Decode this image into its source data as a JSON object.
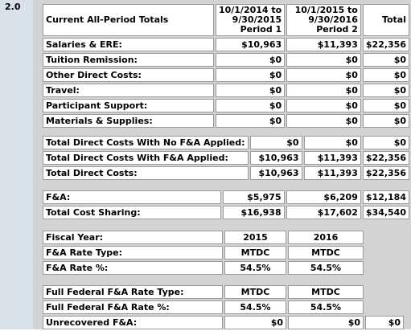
{
  "section_number": "2.0",
  "header": {
    "title": "Current All-Period Totals",
    "period1": [
      "10/1/2014 to",
      "9/30/2015",
      "Period 1"
    ],
    "period2": [
      "10/1/2015 to",
      "9/30/2016",
      "Period 2"
    ],
    "total": "Total"
  },
  "cost_rows": [
    {
      "label": "Salaries & ERE:",
      "p1": "$10,963",
      "p2": "$11,393",
      "total": "$22,356"
    },
    {
      "label": "Tuition Remission:",
      "p1": "$0",
      "p2": "$0",
      "total": "$0"
    },
    {
      "label": "Other Direct Costs:",
      "p1": "$0",
      "p2": "$0",
      "total": "$0"
    },
    {
      "label": "Travel:",
      "p1": "$0",
      "p2": "$0",
      "total": "$0"
    },
    {
      "label": "Participant Support:",
      "p1": "$0",
      "p2": "$0",
      "total": "$0"
    },
    {
      "label": "Materials & Supplies:",
      "p1": "$0",
      "p2": "$0",
      "total": "$0"
    }
  ],
  "direct_rows": [
    {
      "label": "Total Direct Costs With No F&A Applied:",
      "p1": "$0",
      "p2": "$0",
      "total": "$0"
    },
    {
      "label": "Total Direct Costs With F&A Applied:",
      "p1": "$10,963",
      "p2": "$11,393",
      "total": "$22,356"
    },
    {
      "label": "Total Direct Costs:",
      "p1": "$10,963",
      "p2": "$11,393",
      "total": "$22,356"
    }
  ],
  "fa_rows": [
    {
      "label": "F&A:",
      "p1": "$5,975",
      "p2": "$6,209",
      "total": "$12,184"
    },
    {
      "label": "Total Cost Sharing:",
      "p1": "$16,938",
      "p2": "$17,602",
      "total": "$34,540"
    }
  ],
  "fiscal_rows": [
    {
      "label": "Fiscal Year:",
      "p1": "2015",
      "p2": "2016"
    },
    {
      "label": "F&A Rate Type:",
      "p1": "MTDC",
      "p2": "MTDC"
    },
    {
      "label": "F&A Rate %:",
      "p1": "54.5%",
      "p2": "54.5%"
    }
  ],
  "federal_rows": [
    {
      "label": "Full Federal F&A Rate Type:",
      "p1": "MTDC",
      "p2": "MTDC"
    },
    {
      "label": "Full Federal F&A Rate %:",
      "p1": "54.5%",
      "p2": "54.5%"
    }
  ],
  "unrecovered": {
    "label": "Unrecovered F&A:",
    "p1": "$0",
    "p2": "$0",
    "total": "$0"
  }
}
